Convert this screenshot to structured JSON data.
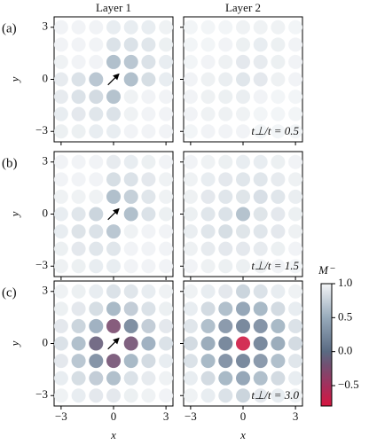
{
  "chart_data": [
    {
      "type": "heatmap",
      "title": "Layer 1",
      "panel_label": "(a)",
      "ylabel": "y",
      "x": [
        -3,
        -2,
        -1,
        0,
        1,
        2,
        3
      ],
      "y": [
        3,
        2,
        1,
        0,
        -1,
        -2,
        -3
      ],
      "xlim": [
        -3.4,
        3.4
      ],
      "ylim": [
        -3.6,
        3.6
      ],
      "xticks": [
        -3,
        0,
        3
      ],
      "yticks": [
        {
          "value": 3,
          "label": "3"
        },
        {
          "value": 0,
          "label": "0"
        },
        {
          "value": -3,
          "label": "−3"
        }
      ],
      "z": [
        [
          0.98,
          0.98,
          0.98,
          0.93,
          0.93,
          0.93,
          0.97
        ],
        [
          0.98,
          0.98,
          0.98,
          0.85,
          0.85,
          0.88,
          0.95
        ],
        [
          0.97,
          0.98,
          0.98,
          0.6,
          0.65,
          0.85,
          0.93
        ],
        [
          0.92,
          0.85,
          0.65,
          null,
          0.6,
          0.82,
          0.93
        ],
        [
          0.92,
          0.85,
          0.8,
          0.62,
          0.97,
          0.98,
          0.98
        ],
        [
          0.93,
          0.9,
          0.88,
          0.85,
          0.97,
          0.98,
          0.98
        ],
        [
          0.95,
          0.95,
          0.93,
          0.93,
          0.98,
          0.98,
          0.98
        ]
      ]
    },
    {
      "type": "heatmap",
      "title": "Layer 2",
      "annotation": "t⊥/t = 0.5",
      "x": [
        -3,
        -2,
        -1,
        0,
        1,
        2,
        3
      ],
      "y": [
        3,
        2,
        1,
        0,
        -1,
        -2,
        -3
      ],
      "xlim": [
        -3.4,
        3.4
      ],
      "ylim": [
        -3.6,
        3.6
      ],
      "xticks": [
        -3,
        0,
        3
      ],
      "yticks": [
        3,
        0,
        -3
      ],
      "z": [
        [
          0.99,
          0.99,
          0.99,
          0.97,
          0.97,
          0.97,
          0.99
        ],
        [
          0.99,
          0.99,
          0.98,
          0.95,
          0.93,
          0.95,
          0.98
        ],
        [
          0.99,
          0.98,
          0.96,
          0.9,
          0.92,
          0.95,
          0.98
        ],
        [
          0.98,
          0.96,
          0.94,
          0.88,
          0.9,
          0.96,
          0.98
        ],
        [
          0.98,
          0.96,
          0.95,
          0.94,
          0.98,
          0.99,
          0.99
        ],
        [
          0.98,
          0.97,
          0.96,
          0.97,
          0.99,
          0.99,
          0.99
        ],
        [
          0.99,
          0.98,
          0.98,
          0.98,
          0.99,
          0.99,
          0.99
        ]
      ]
    },
    {
      "type": "heatmap",
      "panel_label": "(b)",
      "ylabel": "y",
      "x": [
        -3,
        -2,
        -1,
        0,
        1,
        2,
        3
      ],
      "y": [
        3,
        2,
        1,
        0,
        -1,
        -2,
        -3
      ],
      "xlim": [
        -3.4,
        3.4
      ],
      "ylim": [
        -3.6,
        3.6
      ],
      "xticks": [
        -3,
        0,
        3
      ],
      "yticks": [
        {
          "value": 3,
          "label": "3"
        },
        {
          "value": 0,
          "label": "0"
        },
        {
          "value": -3,
          "label": "−3"
        }
      ],
      "z": [
        [
          0.98,
          0.98,
          0.98,
          0.92,
          0.93,
          0.95,
          0.98
        ],
        [
          0.98,
          0.98,
          0.98,
          0.82,
          0.85,
          0.9,
          0.97
        ],
        [
          0.97,
          0.97,
          0.97,
          0.6,
          0.72,
          0.88,
          0.97
        ],
        [
          0.93,
          0.88,
          0.75,
          null,
          0.6,
          0.85,
          0.95
        ],
        [
          0.93,
          0.86,
          0.85,
          0.65,
          0.97,
          0.98,
          0.98
        ],
        [
          0.95,
          0.9,
          0.88,
          0.88,
          0.98,
          0.98,
          0.98
        ],
        [
          0.96,
          0.95,
          0.93,
          0.93,
          0.98,
          0.98,
          0.98
        ]
      ]
    },
    {
      "type": "heatmap",
      "annotation": "t⊥/t = 1.5",
      "x": [
        -3,
        -2,
        -1,
        0,
        1,
        2,
        3
      ],
      "y": [
        3,
        2,
        1,
        0,
        -1,
        -2,
        -3
      ],
      "xlim": [
        -3.4,
        3.4
      ],
      "ylim": [
        -3.6,
        3.6
      ],
      "xticks": [
        -3,
        0,
        3
      ],
      "yticks": [
        3,
        0,
        -3
      ],
      "z": [
        [
          0.98,
          0.97,
          0.95,
          0.93,
          0.93,
          0.95,
          0.98
        ],
        [
          0.97,
          0.93,
          0.9,
          0.88,
          0.88,
          0.92,
          0.96
        ],
        [
          0.96,
          0.9,
          0.88,
          0.87,
          0.83,
          0.88,
          0.94
        ],
        [
          0.95,
          0.88,
          0.85,
          0.62,
          0.87,
          0.9,
          0.95
        ],
        [
          0.94,
          0.88,
          0.82,
          0.87,
          0.88,
          0.9,
          0.96
        ],
        [
          0.96,
          0.92,
          0.9,
          0.9,
          0.92,
          0.95,
          0.98
        ],
        [
          0.98,
          0.96,
          0.95,
          0.95,
          0.96,
          0.98,
          0.99
        ]
      ]
    },
    {
      "type": "heatmap",
      "panel_label": "(c)",
      "ylabel": "y",
      "xlabel": "x",
      "x": [
        -3,
        -2,
        -1,
        0,
        1,
        2,
        3
      ],
      "y": [
        3,
        2,
        1,
        0,
        -1,
        -2,
        -3
      ],
      "xlim": [
        -3.4,
        3.4
      ],
      "ylim": [
        -3.6,
        3.6
      ],
      "xticks": [
        {
          "value": -3,
          "label": "−3"
        },
        {
          "value": 0,
          "label": "0"
        },
        {
          "value": 3,
          "label": "3"
        }
      ],
      "yticks": [
        {
          "value": 3,
          "label": "3"
        },
        {
          "value": 0,
          "label": "0"
        },
        {
          "value": -3,
          "label": "−3"
        }
      ],
      "z": [
        [
          0.97,
          0.95,
          0.93,
          0.85,
          0.88,
          0.93,
          0.97
        ],
        [
          0.95,
          0.9,
          0.82,
          0.55,
          0.7,
          0.85,
          0.95
        ],
        [
          0.9,
          0.75,
          0.5,
          -0.25,
          0.2,
          0.7,
          0.9
        ],
        [
          0.85,
          0.6,
          -0.1,
          null,
          -0.2,
          0.5,
          0.85
        ],
        [
          0.9,
          0.65,
          0.25,
          -0.2,
          0.55,
          0.8,
          0.93
        ],
        [
          0.93,
          0.82,
          0.7,
          0.6,
          0.85,
          0.92,
          0.97
        ],
        [
          0.97,
          0.93,
          0.9,
          0.9,
          0.95,
          0.97,
          0.98
        ]
      ]
    },
    {
      "type": "heatmap",
      "annotation": "t⊥/t = 3.0",
      "xlabel": "x",
      "x": [
        -3,
        -2,
        -1,
        0,
        1,
        2,
        3
      ],
      "y": [
        3,
        2,
        1,
        0,
        -1,
        -2,
        -3
      ],
      "xlim": [
        -3.4,
        3.4
      ],
      "ylim": [
        -3.6,
        3.6
      ],
      "xticks": [
        {
          "value": -3,
          "label": "−3"
        },
        {
          "value": 0,
          "label": "0"
        },
        {
          "value": 3,
          "label": "3"
        }
      ],
      "yticks": [
        3,
        0,
        -3
      ],
      "z": [
        [
          0.97,
          0.93,
          0.9,
          0.75,
          0.85,
          0.93,
          0.97
        ],
        [
          0.93,
          0.8,
          0.6,
          0.4,
          0.55,
          0.8,
          0.93
        ],
        [
          0.88,
          0.6,
          0.3,
          0.15,
          0.25,
          0.55,
          0.85
        ],
        [
          0.8,
          0.45,
          0.15,
          -0.75,
          0.15,
          0.45,
          0.8
        ],
        [
          0.85,
          0.55,
          0.25,
          0.15,
          0.3,
          0.6,
          0.88
        ],
        [
          0.93,
          0.8,
          0.55,
          0.4,
          0.6,
          0.8,
          0.93
        ],
        [
          0.97,
          0.93,
          0.85,
          0.75,
          0.9,
          0.93,
          0.97
        ]
      ]
    },
    {
      "type": "colorbar",
      "label": "M⁻",
      "clim": [
        -0.8,
        1.0
      ],
      "ticks": [
        {
          "value": 1.0,
          "label": "1.0"
        },
        {
          "value": 0.5,
          "label": "0.5"
        },
        {
          "value": 0,
          "label": "0.0"
        },
        {
          "value": -0.5,
          "label": "−0.5"
        }
      ],
      "colormap": [
        [
          -0.8,
          "#d7153f"
        ],
        [
          -0.5,
          "#a3305d"
        ],
        [
          -0.2,
          "#725072"
        ],
        [
          0,
          "#5a6a82"
        ],
        [
          0.5,
          "#97aabb"
        ],
        [
          1.0,
          "#f3f5f7"
        ]
      ]
    }
  ]
}
